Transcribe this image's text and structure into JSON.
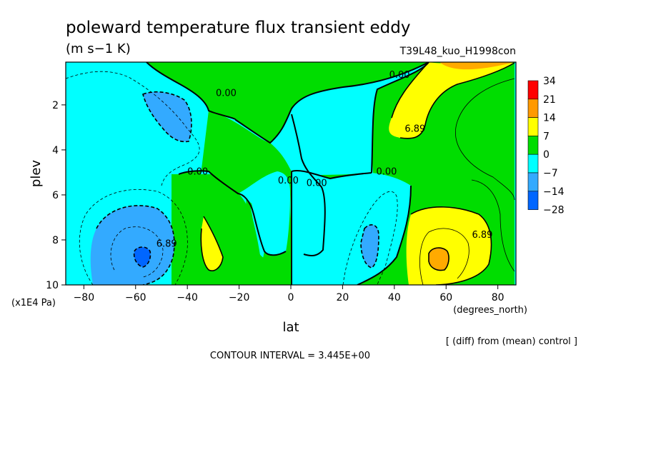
{
  "header": {
    "title": "poleward temperature flux transient eddy",
    "units": "(m s−1 K)",
    "run_label": "T39L48_kuo_H1998con"
  },
  "footer": {
    "diff_note": "[ (diff) from (mean) control ]",
    "contour_interval": "CONTOUR INTERVAL = 3.445E+00"
  },
  "chart_data": {
    "type": "contour",
    "xlabel": "lat",
    "xunit": "(degrees_north)",
    "ylabel": "plev",
    "yunit": "(x1E4 Pa)",
    "xlim": [
      -87,
      87
    ],
    "ylim": [
      0.1,
      10
    ],
    "y_inverted": true,
    "x_ticks": [
      -80,
      -60,
      -40,
      -20,
      0,
      20,
      40,
      60,
      80
    ],
    "y_ticks": [
      2,
      4,
      6,
      8,
      10
    ],
    "contour_interval": 3.445,
    "contour_labels": [
      {
        "text": "0.00",
        "x": -25,
        "y": 1.6
      },
      {
        "text": "0.00",
        "x": 42,
        "y": 0.8
      },
      {
        "text": "6.89",
        "x": 48,
        "y": 3.2
      },
      {
        "text": "0.00",
        "x": -36,
        "y": 5.1
      },
      {
        "text": "0.00",
        "x": -1,
        "y": 5.5
      },
      {
        "text": "0.00",
        "x": 10,
        "y": 5.6
      },
      {
        "text": "0.00",
        "x": 37,
        "y": 5.1
      },
      {
        "text": "6.89",
        "x": -48,
        "y": 8.3
      },
      {
        "text": "6.89",
        "x": 74,
        "y": 7.9
      }
    ],
    "colorbar": {
      "levels": [
        "34",
        "21",
        "14",
        "7",
        "0",
        "−7",
        "−14",
        "−28"
      ],
      "colors": [
        "#ff0000",
        "#ff9900",
        "#ffff00",
        "#00dd00",
        "#00ffff",
        "#33aaff",
        "#0066ff"
      ]
    },
    "regions_note": "positive max ~17 near 58N 9e4 Pa; negative min ~-15 near 60S 8.5e4 Pa"
  }
}
